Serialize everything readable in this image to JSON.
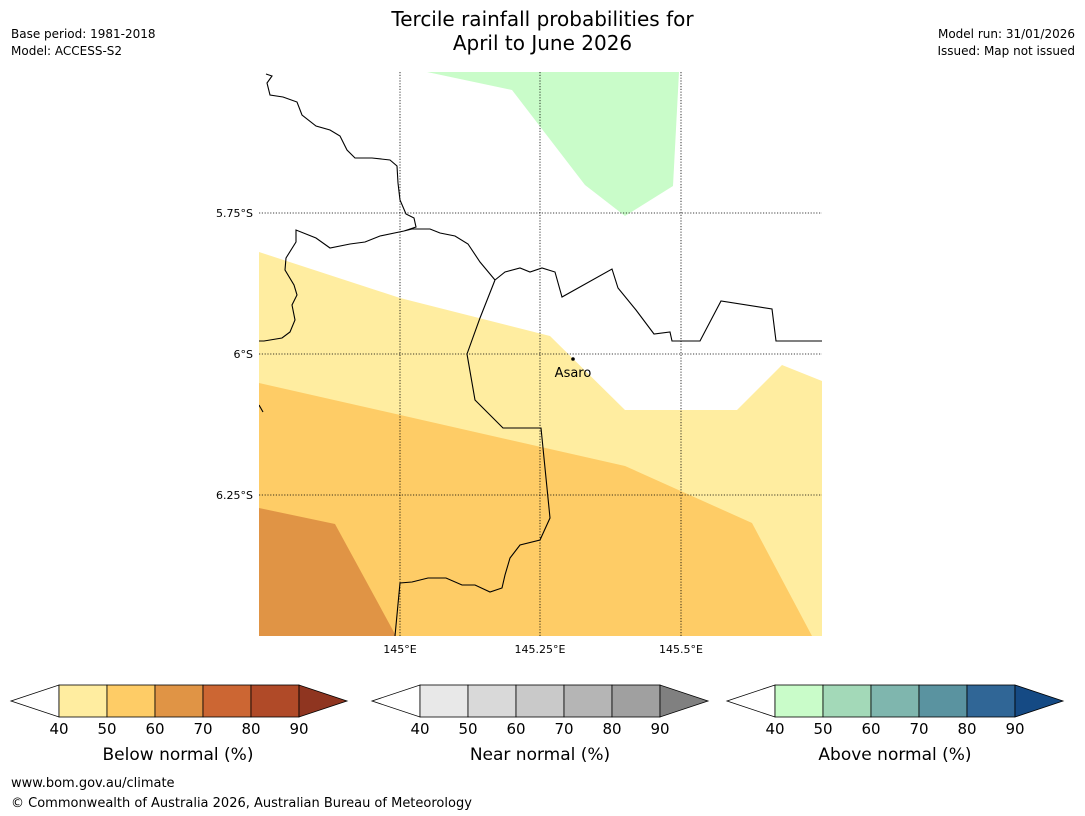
{
  "title": {
    "line1": "Tercile rainfall probabilities for",
    "line2": "April to June 2026"
  },
  "meta_left": {
    "base_period": "Base period: 1981-2018",
    "model": "Model: ACCESS-S2"
  },
  "meta_right": {
    "model_run": "Model run: 31/01/2026",
    "issued": "Issued: Map not issued"
  },
  "map": {
    "lat_labels": [
      "5.75°S",
      "6°S",
      "6.25°S"
    ],
    "lon_labels": [
      "145°E",
      "145.25°E",
      "145.5°E"
    ],
    "place_name": "Asaro",
    "colors": {
      "below_50": "#ffeda0",
      "below_60": "#fecc66",
      "below_70": "#e09445",
      "above_50": "#c9fcc9"
    }
  },
  "colorbars": [
    {
      "name": "below-normal",
      "label": "Below normal (%)",
      "ticks": [
        "40",
        "50",
        "60",
        "70",
        "80",
        "90"
      ],
      "colors": [
        "#ffeda0",
        "#fecc66",
        "#e09445",
        "#cc6633",
        "#b04a28",
        "#8f3520"
      ]
    },
    {
      "name": "near-normal",
      "label": "Near normal (%)",
      "ticks": [
        "40",
        "50",
        "60",
        "70",
        "80",
        "90"
      ],
      "colors": [
        "#e8e8e8",
        "#d9d9d9",
        "#c9c9c9",
        "#b5b5b5",
        "#a0a0a0",
        "#808080"
      ]
    },
    {
      "name": "above-normal",
      "label": "Above normal (%)",
      "ticks": [
        "40",
        "50",
        "60",
        "70",
        "80",
        "90"
      ],
      "colors": [
        "#c9fcc9",
        "#a3d9b8",
        "#7fb6ae",
        "#5a93a0",
        "#306696",
        "#154a84"
      ]
    }
  ],
  "footer": {
    "url": "www.bom.gov.au/climate",
    "copyright": "© Commonwealth of Australia 2026, Australian Bureau of Meteorology"
  }
}
